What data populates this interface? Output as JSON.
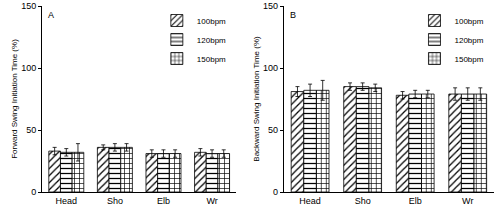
{
  "chart_data": [
    {
      "type": "bar",
      "title": "A",
      "y_label": "Forward Swing Initiation Time (%)",
      "categories": [
        "Head",
        "Sho",
        "Elb",
        "Wr"
      ],
      "series": [
        {
          "name": "100bpm",
          "color": "#ffffff",
          "marker": "diagonal",
          "values": [
            33,
            36,
            31,
            32
          ],
          "errors": [
            3,
            2,
            3,
            3
          ]
        },
        {
          "name": "120bpm",
          "color": "#ffffff",
          "marker": "horizontal",
          "values": [
            32,
            36,
            31,
            31
          ],
          "errors": [
            3,
            3,
            3,
            3
          ]
        },
        {
          "name": "150bpm",
          "color": "#ffffff",
          "marker": "grid",
          "values": [
            32,
            36,
            31,
            31
          ],
          "errors": [
            7,
            3,
            3,
            3
          ]
        }
      ],
      "ylim": [
        0,
        150
      ],
      "yticks": [
        0,
        50,
        100,
        150
      ],
      "grid": false,
      "legend": "top right"
    },
    {
      "type": "bar",
      "title": "B",
      "y_label": "Backward Swing Initiation Time (%)",
      "categories": [
        "Head",
        "Sho",
        "Elb",
        "Wr"
      ],
      "series": [
        {
          "name": "100bpm",
          "color": "#ffffff",
          "marker": "diagonal",
          "values": [
            81,
            85,
            78,
            79
          ],
          "errors": [
            4,
            3,
            3,
            5
          ]
        },
        {
          "name": "120bpm",
          "color": "#ffffff",
          "marker": "horizontal",
          "values": [
            82,
            85,
            79,
            79
          ],
          "errors": [
            5,
            3,
            3,
            5
          ]
        },
        {
          "name": "150bpm",
          "color": "#ffffff",
          "marker": "grid",
          "values": [
            82,
            84,
            79,
            79
          ],
          "errors": [
            8,
            3,
            3,
            5
          ]
        }
      ],
      "ylim": [
        0,
        150
      ],
      "yticks": [
        0,
        50,
        100,
        150
      ],
      "grid": false,
      "legend": "top right"
    }
  ]
}
